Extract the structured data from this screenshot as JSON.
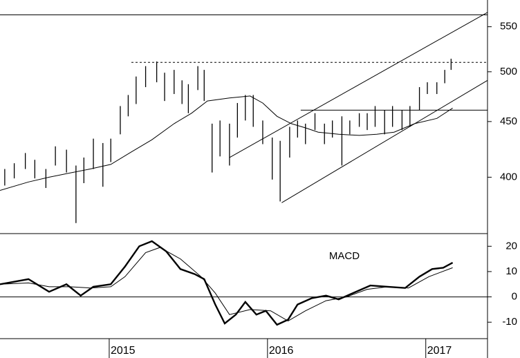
{
  "chart_data": [
    {
      "type": "hilo",
      "color": "#000000",
      "log": true,
      "xlim": [
        2014.31,
        2017.39
      ],
      "ylim": [
        355,
        582
      ],
      "yticks": [
        400,
        450,
        500,
        550
      ],
      "x": [
        2014.34,
        2014.4,
        2014.47,
        2014.53,
        2014.6,
        2014.66,
        2014.73,
        2014.79,
        2014.84,
        2014.9,
        2014.96,
        2015.01,
        2015.07,
        2015.12,
        2015.17,
        2015.23,
        2015.3,
        2015.35,
        2015.41,
        2015.46,
        2015.5,
        2015.56,
        2015.6,
        2015.65,
        2015.7,
        2015.76,
        2015.81,
        2015.86,
        2015.91,
        2015.97,
        2016.03,
        2016.08,
        2016.14,
        2016.19,
        2016.24,
        2016.3,
        2016.36,
        2016.41,
        2016.47,
        2016.52,
        2016.58,
        2016.63,
        2016.68,
        2016.74,
        2016.79,
        2016.85,
        2016.9,
        2016.96,
        2017.01,
        2017.07,
        2017.12,
        2017.16
      ],
      "high": [
        407,
        412,
        421,
        415,
        407,
        427,
        424,
        410,
        417,
        434,
        430,
        434,
        465,
        476,
        495,
        506,
        511,
        499,
        502,
        491,
        487,
        506,
        502,
        448,
        451,
        448,
        468,
        476,
        476,
        451,
        435,
        432,
        445,
        451,
        448,
        458,
        448,
        451,
        455,
        451,
        458,
        458,
        465,
        461,
        465,
        461,
        465,
        484,
        489,
        489,
        502,
        514
      ],
      "low": [
        393,
        399,
        407,
        399,
        391,
        410,
        404,
        363,
        395,
        407,
        392,
        413,
        438,
        455,
        467,
        484,
        489,
        470,
        477,
        467,
        458,
        481,
        470,
        404,
        418,
        410,
        435,
        451,
        445,
        429,
        398,
        380,
        417,
        435,
        429,
        442,
        429,
        435,
        410,
        438,
        445,
        442,
        445,
        438,
        445,
        442,
        445,
        461,
        477,
        477,
        488,
        502
      ],
      "moving_average": {
        "color": "#000000",
        "x": [
          2014.31,
          2014.49,
          2014.62,
          2014.75,
          2014.88,
          2015.01,
          2015.14,
          2015.27,
          2015.41,
          2015.52,
          2015.62,
          2015.76,
          2015.89,
          2015.97,
          2016.06,
          2016.15,
          2016.24,
          2016.32,
          2016.45,
          2016.58,
          2016.69,
          2016.8,
          2016.93,
          2017.07,
          2017.17
        ],
        "values": [
          389,
          396,
          400,
          403.5,
          407,
          411,
          422,
          433,
          448,
          458,
          470,
          473,
          475,
          468,
          455,
          448,
          444,
          440,
          438,
          437,
          438,
          440,
          448,
          453,
          463
        ]
      },
      "trendlines": [
        {
          "x": [
            2014.31,
            2017.39
          ],
          "y": [
            564,
            564
          ],
          "style": "solid"
        },
        {
          "x": [
            2015.14,
            2017.39
          ],
          "y": [
            510,
            510
          ],
          "style": "dotted"
        },
        {
          "x": [
            2016.21,
            2017.39
          ],
          "y": [
            461,
            461
          ],
          "style": "solid"
        },
        {
          "x": [
            2015.76,
            2017.39
          ],
          "y": [
            417,
            567
          ],
          "style": "solid"
        },
        {
          "x": [
            2016.09,
            2017.39
          ],
          "y": [
            379,
            491
          ],
          "style": "solid"
        }
      ]
    },
    {
      "type": "line",
      "title": "MACD",
      "xlim": [
        2014.31,
        2017.39
      ],
      "xticks": [
        2015,
        2016,
        2017
      ],
      "ylim": [
        -16.5,
        25
      ],
      "yticks": [
        20,
        10,
        0,
        -10
      ],
      "zero_line": true,
      "series": [
        {
          "color": "#000000",
          "width": 2.4,
          "x": [
            2014.31,
            2014.49,
            2014.62,
            2014.73,
            2014.82,
            2014.9,
            2015.01,
            2015.1,
            2015.19,
            2015.27,
            2015.36,
            2015.45,
            2015.54,
            2015.6,
            2015.67,
            2015.73,
            2015.8,
            2015.86,
            2015.93,
            2015.99,
            2016.06,
            2016.13,
            2016.19,
            2016.28,
            2016.37,
            2016.45,
            2016.54,
            2016.65,
            2016.76,
            2016.87,
            2016.96,
            2017.04,
            2017.11,
            2017.17
          ],
          "values": [
            5,
            7,
            2,
            5,
            0.5,
            4,
            5,
            12,
            20,
            22,
            18,
            11,
            9,
            7,
            -3,
            -10.5,
            -7,
            -2,
            -7,
            -5.5,
            -11,
            -9,
            -3,
            -0.5,
            0.5,
            -1,
            1.5,
            4.5,
            4,
            3.5,
            8,
            11,
            11.5,
            13.5
          ]
        },
        {
          "color": "#000000",
          "width": 1,
          "x": [
            2014.31,
            2014.49,
            2014.62,
            2014.75,
            2014.88,
            2015.01,
            2015.1,
            2015.23,
            2015.32,
            2015.45,
            2015.58,
            2015.67,
            2015.76,
            2015.89,
            2016.02,
            2016.13,
            2016.24,
            2016.37,
            2016.5,
            2016.63,
            2016.76,
            2016.89,
            2017.02,
            2017.17
          ],
          "values": [
            5,
            5.5,
            4,
            4,
            3.5,
            4,
            8,
            17.5,
            19.5,
            15,
            8,
            1.5,
            -7,
            -5,
            -5.5,
            -9.5,
            -5.5,
            -1.5,
            0,
            3,
            4,
            3.5,
            8,
            11.5
          ]
        }
      ]
    }
  ]
}
